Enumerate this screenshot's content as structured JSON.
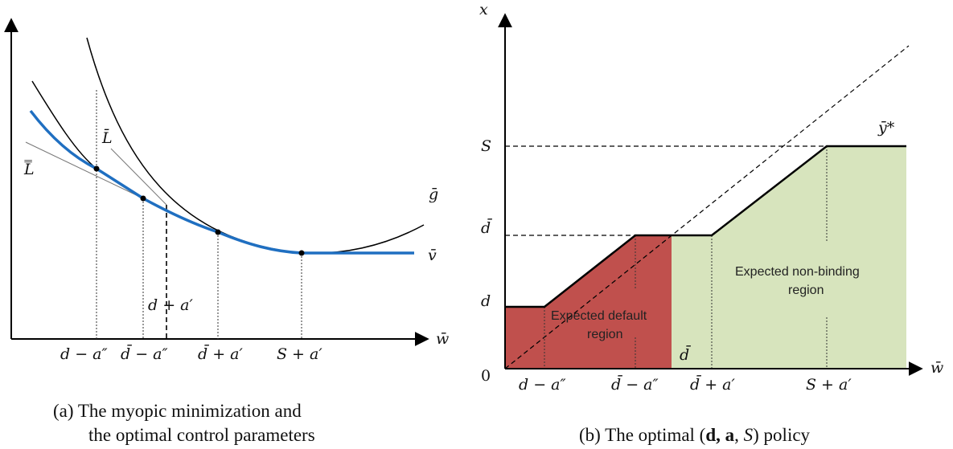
{
  "panel_a": {
    "y_axis_label": "",
    "x_axis_label": "w̄",
    "curve_labels": {
      "g_bar": "ḡ",
      "v_bar": "v̄",
      "L_bar": "L̄",
      "L_double_bar": "L̿"
    },
    "ticks": [
      "d − a″",
      "d̄ − a″",
      "d + a′",
      "d̄ + a′",
      "S + a′"
    ],
    "caption_line1": "(a)  The myopic minimization and",
    "caption_line2": "the optimal control parameters"
  },
  "panel_b": {
    "y_axis_label": "x",
    "x_axis_label": "w̄",
    "origin_label": "0",
    "y_ticks": [
      "S",
      "d̄",
      "d"
    ],
    "x_ticks": [
      "d − a″",
      "d̄ − a″",
      "d̄",
      "d̄ + a′",
      "S + a′"
    ],
    "policy_label": "ȳ*",
    "regions": {
      "default_line1": "Expected default",
      "default_line2": "region",
      "nonbinding_line1": "Expected non-binding",
      "nonbinding_line2": "region"
    },
    "caption_prefix": "(b) The optimal (",
    "caption_bold": "d, a",
    "caption_mid": ", ",
    "caption_italic": "S",
    "caption_suffix": ") policy"
  },
  "colors": {
    "blue_curve": "#1f6fc1",
    "default_region": "#c0504d",
    "nonbinding_region": "#d7e4bd",
    "axis": "#000000"
  }
}
